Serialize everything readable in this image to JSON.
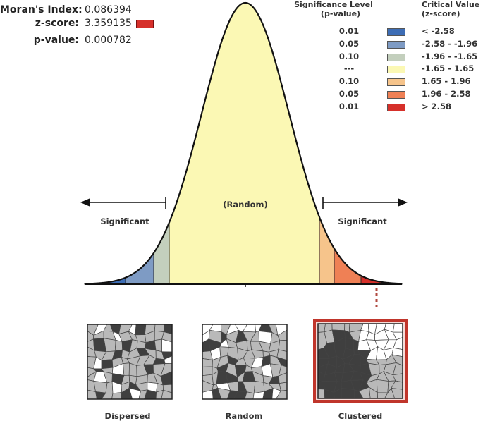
{
  "stats": {
    "morans_index": {
      "label": "Moran's Index:",
      "value": "0.086394"
    },
    "z_score": {
      "label": "z-score:",
      "value": "3.359135",
      "marker_color": "#d6302a"
    },
    "p_value": {
      "label": "p-value:",
      "value": "0.000782"
    }
  },
  "legend": {
    "headers": {
      "significance_line1": "Significance Level",
      "significance_line2": "(p-value)",
      "critical_line1": "Critical Value",
      "critical_line2": "(z-score)"
    },
    "rows": [
      {
        "p": "0.01",
        "z": "< -2.58",
        "color": "#3d6db5"
      },
      {
        "p": "0.05",
        "z": "-2.58 - -1.96",
        "color": "#7e9bc4"
      },
      {
        "p": "0.10",
        "z": "-1.96 - -1.65",
        "color": "#c3cfbd"
      },
      {
        "p": "---",
        "z": "-1.65 - 1.65",
        "color": "#fbf8b4"
      },
      {
        "p": "0.10",
        "z": "1.65 - 1.96",
        "color": "#f6c48b"
      },
      {
        "p": "0.05",
        "z": "1.96 - 2.58",
        "color": "#ef8055"
      },
      {
        "p": "0.01",
        "z": "> 2.58",
        "color": "#d6302a"
      }
    ]
  },
  "curve": {
    "center_label": "(Random)",
    "left_label": "Significant",
    "right_label": "Significant"
  },
  "examples": [
    {
      "label": "Dispersed"
    },
    {
      "label": "Random"
    },
    {
      "label": "Clustered",
      "highlight_color": "#c0352b"
    }
  ]
}
